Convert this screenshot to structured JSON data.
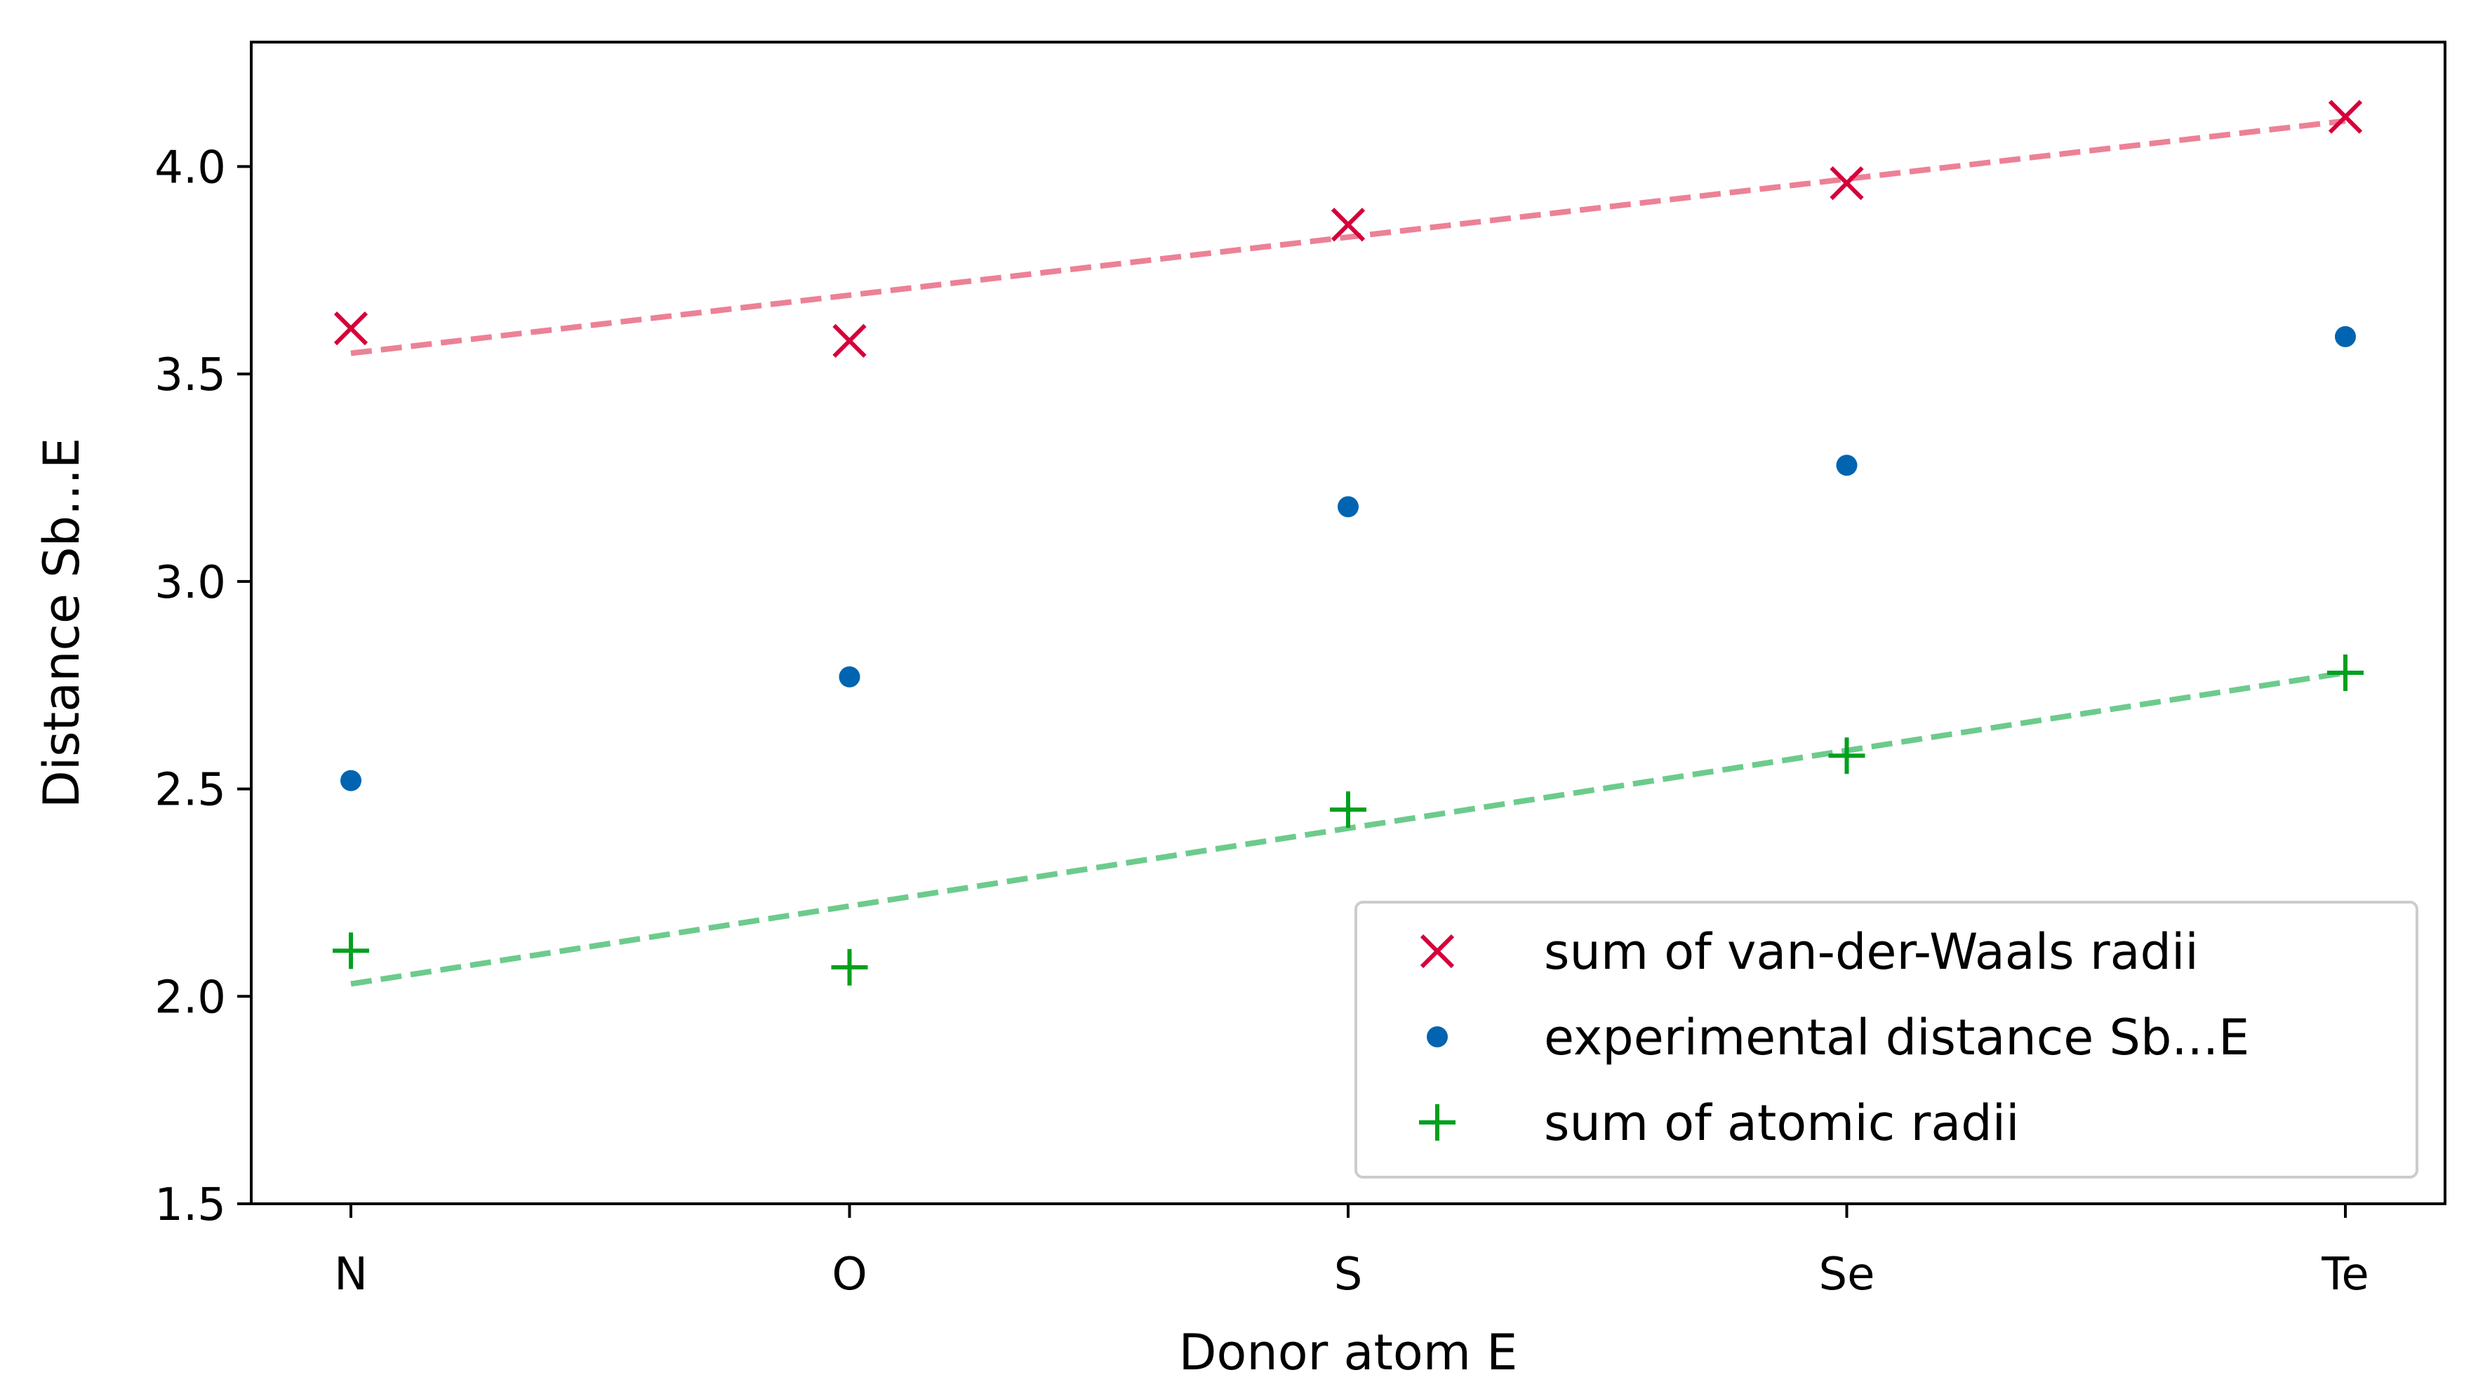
{
  "chart_data": {
    "type": "scatter",
    "title": "",
    "xlabel": "Donor atom E",
    "ylabel": "Distance Sb...E",
    "categories": [
      "N",
      "O",
      "S",
      "Se",
      "Te"
    ],
    "ylim": [
      1.5,
      4.3
    ],
    "yticks": [
      1.5,
      2.0,
      2.5,
      3.0,
      3.5,
      4.0
    ],
    "ytick_labels": [
      "1.5",
      "2.0",
      "2.5",
      "3.0",
      "3.5",
      "4.0"
    ],
    "grid": false,
    "legend_position": "lower-right",
    "series": [
      {
        "name": "sum of van-der-Waals radii",
        "marker": "x",
        "color": "#d6003a",
        "values": [
          3.61,
          3.58,
          3.86,
          3.96,
          4.12
        ],
        "trend": {
          "color": "#ec8196",
          "start": 3.55,
          "end": 4.11
        }
      },
      {
        "name": "experimental distance Sb...E",
        "marker": "dot",
        "color": "#0064b0",
        "values": [
          2.52,
          2.77,
          3.18,
          3.28,
          3.59
        ]
      },
      {
        "name": "sum of atomic radii",
        "marker": "plus",
        "color": "#00a01e",
        "values": [
          2.11,
          2.07,
          2.45,
          2.58,
          2.78
        ],
        "trend": {
          "color": "#6ccb8c",
          "start": 2.03,
          "end": 2.78
        }
      }
    ]
  }
}
